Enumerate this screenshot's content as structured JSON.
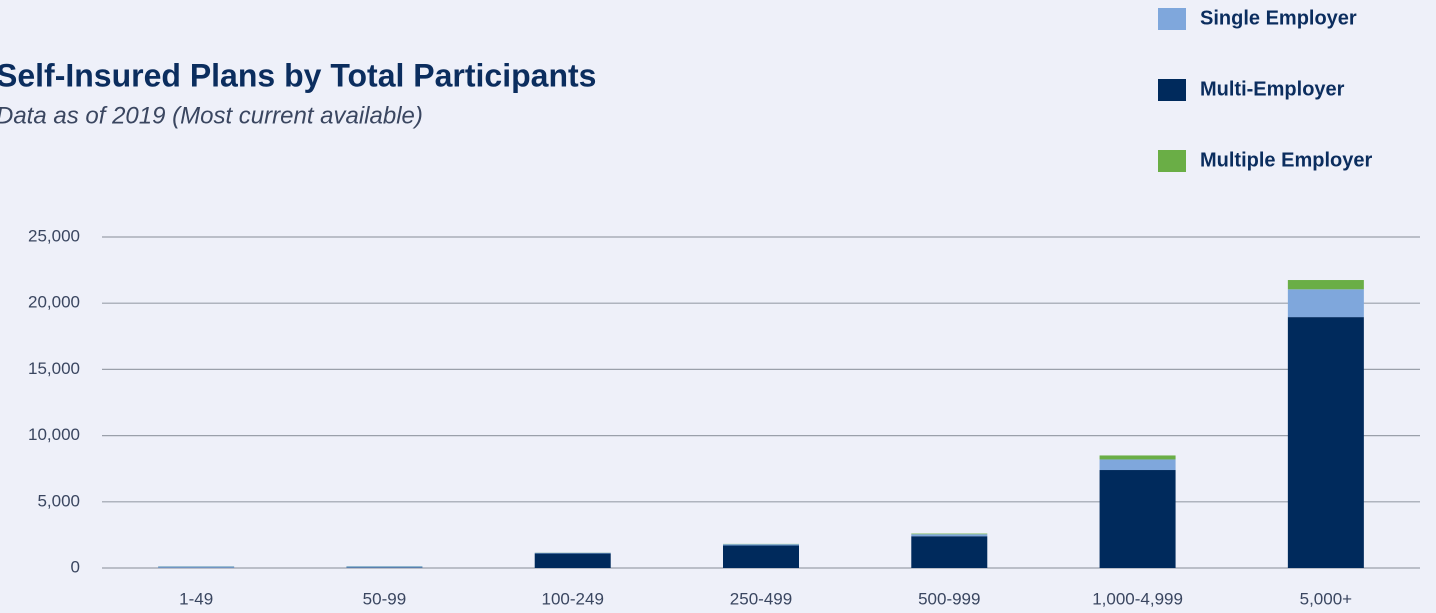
{
  "chart_data": {
    "type": "stacked_bar",
    "title": "Self-Insured Plans by Total Participants",
    "subtitle": "Data as of 2019 (Most current available)",
    "categories": [
      "1-49",
      "50-99",
      "100-249",
      "250-499",
      "500-999",
      "1,000-4,999",
      "5,000+"
    ],
    "series": [
      {
        "name": "Single Employer",
        "color": "#7fa7dc",
        "values": [
          100,
          100,
          50,
          100,
          150,
          800,
          2100
        ]
      },
      {
        "name": "Multi-Employer",
        "color": "#002a5c",
        "values": [
          20,
          30,
          1100,
          1700,
          2400,
          7400,
          18950
        ]
      },
      {
        "name": "Multiple Employer",
        "color": "#6aae46",
        "values": [
          10,
          10,
          10,
          20,
          50,
          300,
          700
        ]
      }
    ],
    "stack_order": [
      "Multi-Employer",
      "Single Employer",
      "Multiple Employer"
    ],
    "ylim": [
      0,
      25000
    ],
    "yticks": [
      0,
      {
        "value": 5000,
        "label": "5,000"
      },
      {
        "value": 10000,
        "label": "10,000"
      },
      {
        "value": 15000,
        "label": "15,000"
      },
      {
        "value": 20000,
        "label": "20,000"
      },
      {
        "value": 25000,
        "label": "25,000"
      }
    ],
    "grid": true,
    "legend": "top-right"
  }
}
